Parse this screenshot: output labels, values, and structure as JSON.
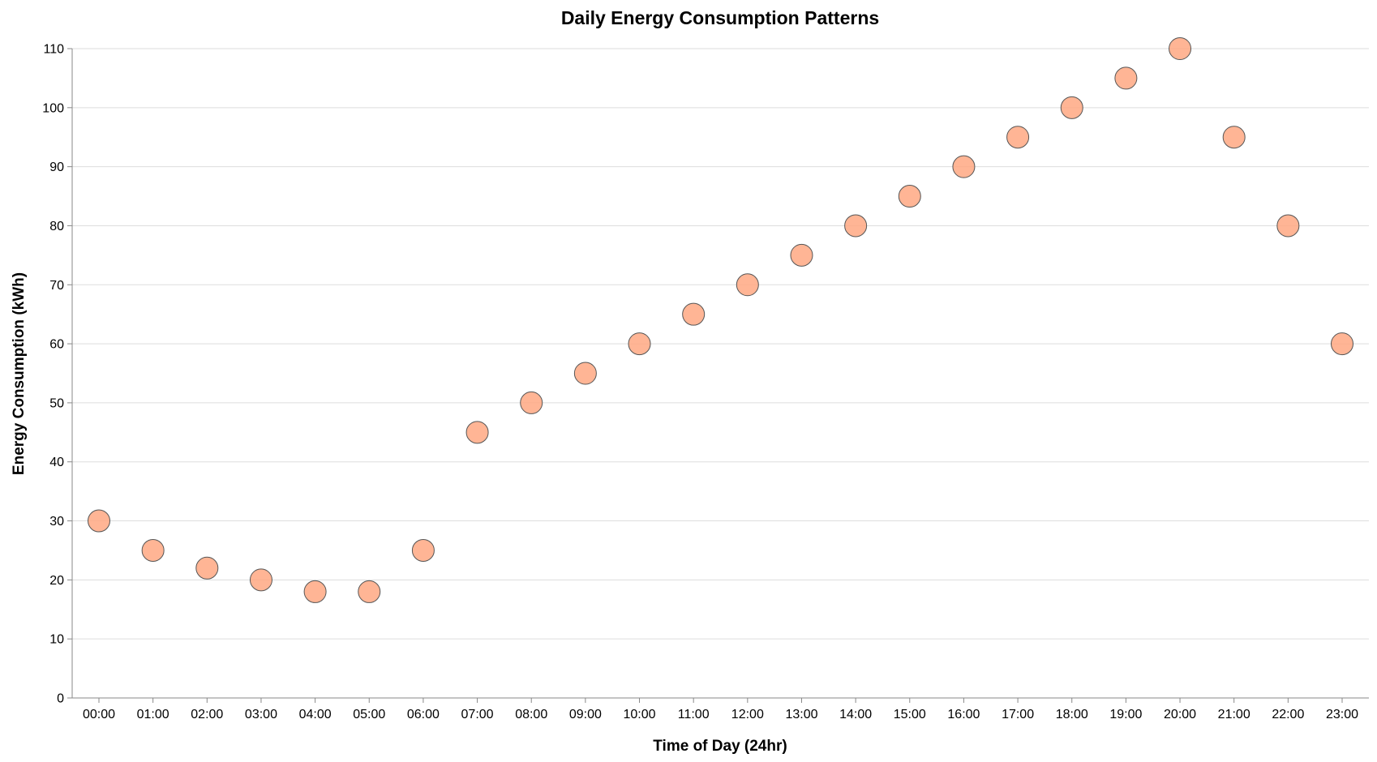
{
  "chart_data": {
    "type": "scatter",
    "title": "Daily Energy Consumption Patterns",
    "xlabel": "Time of Day (24hr)",
    "ylabel": "Energy Consumption (kWh)",
    "x": [
      "00:00",
      "01:00",
      "02:00",
      "03:00",
      "04:00",
      "05:00",
      "06:00",
      "07:00",
      "08:00",
      "09:00",
      "10:00",
      "11:00",
      "12:00",
      "13:00",
      "14:00",
      "15:00",
      "16:00",
      "17:00",
      "18:00",
      "19:00",
      "20:00",
      "21:00",
      "22:00",
      "23:00"
    ],
    "y": [
      30,
      25,
      22,
      20,
      18,
      18,
      25,
      45,
      50,
      55,
      60,
      65,
      70,
      75,
      80,
      85,
      90,
      95,
      100,
      105,
      110,
      95,
      80,
      60
    ],
    "ylim": [
      0,
      110
    ],
    "yticks": [
      0,
      10,
      20,
      30,
      40,
      50,
      60,
      70,
      80,
      90,
      100,
      110
    ],
    "grid": "horizontal",
    "legend": "none",
    "colors": {
      "point_fill": "#ffa882",
      "point_stroke": "#555555",
      "grid": "#dddddd",
      "axis": "#888888"
    }
  }
}
